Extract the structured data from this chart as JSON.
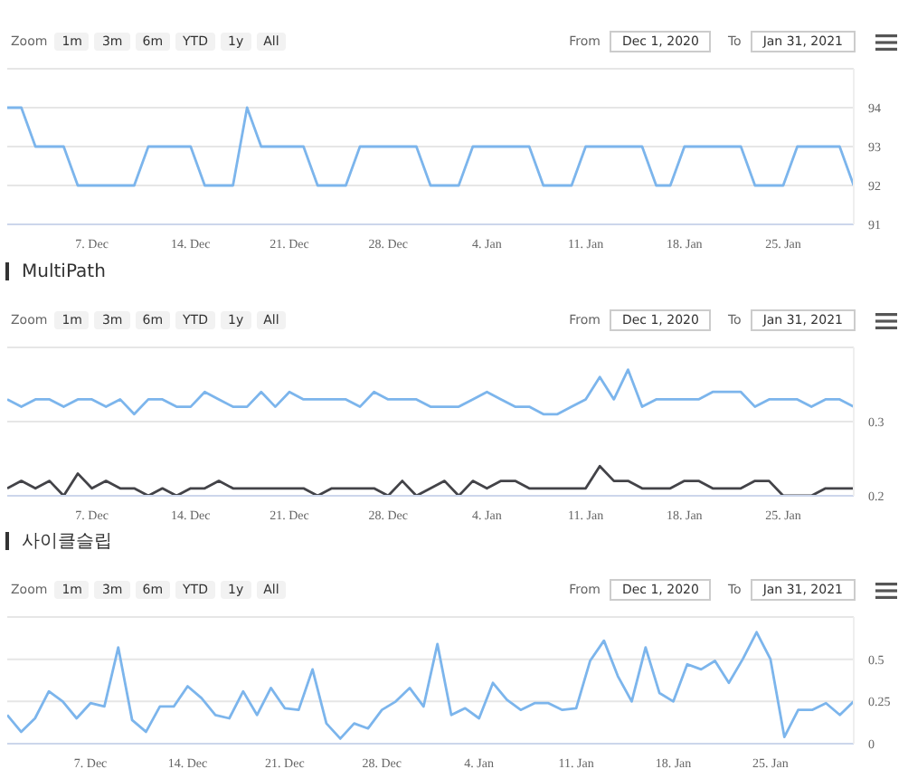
{
  "chart_data": [
    {
      "type": "line",
      "legend": false,
      "grid": "y",
      "marker": "none",
      "annotations": [
        "Zoom",
        "1m",
        "3m",
        "6m",
        "YTD",
        "1y",
        "All",
        "From",
        "Dec 1, 2020",
        "To",
        "Jan 31, 2021"
      ],
      "x": [
        "2020-12-01",
        "2020-12-02",
        "2020-12-03",
        "2020-12-04",
        "2020-12-05",
        "2020-12-06",
        "2020-12-07",
        "2020-12-08",
        "2020-12-09",
        "2020-12-10",
        "2020-12-11",
        "2020-12-12",
        "2020-12-13",
        "2020-12-14",
        "2020-12-15",
        "2020-12-16",
        "2020-12-17",
        "2020-12-18",
        "2020-12-19",
        "2020-12-20",
        "2020-12-21",
        "2020-12-22",
        "2020-12-23",
        "2020-12-24",
        "2020-12-25",
        "2020-12-26",
        "2020-12-27",
        "2020-12-28",
        "2020-12-29",
        "2020-12-30",
        "2020-12-31",
        "2021-01-01",
        "2021-01-02",
        "2021-01-03",
        "2021-01-04",
        "2021-01-05",
        "2021-01-06",
        "2021-01-07",
        "2021-01-08",
        "2021-01-09",
        "2021-01-10",
        "2021-01-11",
        "2021-01-12",
        "2021-01-13",
        "2021-01-14",
        "2021-01-15",
        "2021-01-16",
        "2021-01-17",
        "2021-01-18",
        "2021-01-19",
        "2021-01-20",
        "2021-01-21",
        "2021-01-22",
        "2021-01-23",
        "2021-01-24",
        "2021-01-25",
        "2021-01-26",
        "2021-01-27",
        "2021-01-28",
        "2021-01-29",
        "2021-01-30"
      ],
      "xlim": [
        "2020-12-01",
        "2021-01-30"
      ],
      "xticks": [
        {
          "value": "2020-12-07",
          "label": "7. Dec"
        },
        {
          "value": "2020-12-14",
          "label": "14. Dec"
        },
        {
          "value": "2020-12-21",
          "label": "21. Dec"
        },
        {
          "value": "2020-12-28",
          "label": "28. Dec"
        },
        {
          "value": "2021-01-04",
          "label": "4. Jan"
        },
        {
          "value": "2021-01-11",
          "label": "11. Jan"
        },
        {
          "value": "2021-01-18",
          "label": "18. Jan"
        },
        {
          "value": "2021-01-25",
          "label": "25. Jan"
        }
      ],
      "ylim": [
        91,
        95
      ],
      "yticks": [
        91,
        92,
        93,
        94,
        {
          "value": 95,
          "label": null
        }
      ],
      "series": [
        {
          "color": "#7cb5ec",
          "values": [
            94,
            94,
            93,
            93,
            93,
            92,
            92,
            92,
            92,
            92,
            93,
            93,
            93,
            93,
            92,
            92,
            92,
            94,
            93,
            93,
            93,
            93,
            92,
            92,
            92,
            93,
            93,
            93,
            93,
            93,
            92,
            92,
            92,
            93,
            93,
            93,
            93,
            93,
            92,
            92,
            92,
            93,
            93,
            93,
            93,
            93,
            92,
            92,
            93,
            93,
            93,
            93,
            93,
            92,
            92,
            92,
            93,
            93,
            93,
            93,
            92
          ]
        }
      ]
    },
    {
      "type": "line",
      "title": "MultiPath",
      "legend": false,
      "grid": "y",
      "marker": "none",
      "annotations": [
        "Zoom",
        "1m",
        "3m",
        "6m",
        "YTD",
        "1y",
        "All",
        "From",
        "Dec 1, 2020",
        "To",
        "Jan 31, 2021"
      ],
      "x": [
        "2020-12-01",
        "2020-12-02",
        "2020-12-03",
        "2020-12-04",
        "2020-12-05",
        "2020-12-06",
        "2020-12-07",
        "2020-12-08",
        "2020-12-09",
        "2020-12-10",
        "2020-12-11",
        "2020-12-12",
        "2020-12-13",
        "2020-12-14",
        "2020-12-15",
        "2020-12-16",
        "2020-12-17",
        "2020-12-18",
        "2020-12-19",
        "2020-12-20",
        "2020-12-21",
        "2020-12-22",
        "2020-12-23",
        "2020-12-24",
        "2020-12-25",
        "2020-12-26",
        "2020-12-27",
        "2020-12-28",
        "2020-12-29",
        "2020-12-30",
        "2020-12-31",
        "2021-01-01",
        "2021-01-02",
        "2021-01-03",
        "2021-01-04",
        "2021-01-05",
        "2021-01-06",
        "2021-01-07",
        "2021-01-08",
        "2021-01-09",
        "2021-01-10",
        "2021-01-11",
        "2021-01-12",
        "2021-01-13",
        "2021-01-14",
        "2021-01-15",
        "2021-01-16",
        "2021-01-17",
        "2021-01-18",
        "2021-01-19",
        "2021-01-20",
        "2021-01-21",
        "2021-01-22",
        "2021-01-23",
        "2021-01-24",
        "2021-01-25",
        "2021-01-26",
        "2021-01-27",
        "2021-01-28",
        "2021-01-29",
        "2021-01-30"
      ],
      "xlim": [
        "2020-12-01",
        "2021-01-30"
      ],
      "xticks": [
        {
          "value": "2020-12-07",
          "label": "7. Dec"
        },
        {
          "value": "2020-12-14",
          "label": "14. Dec"
        },
        {
          "value": "2020-12-21",
          "label": "21. Dec"
        },
        {
          "value": "2020-12-28",
          "label": "28. Dec"
        },
        {
          "value": "2021-01-04",
          "label": "4. Jan"
        },
        {
          "value": "2021-01-11",
          "label": "11. Jan"
        },
        {
          "value": "2021-01-18",
          "label": "18. Jan"
        },
        {
          "value": "2021-01-25",
          "label": "25. Jan"
        }
      ],
      "ylim": [
        0.2,
        0.4
      ],
      "yticks": [
        0.2,
        0.3,
        {
          "value": 0.4,
          "label": null
        }
      ],
      "series": [
        {
          "color": "#7cb5ec",
          "values": [
            0.33,
            0.32,
            0.33,
            0.33,
            0.32,
            0.33,
            0.33,
            0.32,
            0.33,
            0.31,
            0.33,
            0.33,
            0.32,
            0.32,
            0.34,
            0.33,
            0.32,
            0.32,
            0.34,
            0.32,
            0.34,
            0.33,
            0.33,
            0.33,
            0.33,
            0.32,
            0.34,
            0.33,
            0.33,
            0.33,
            0.32,
            0.32,
            0.32,
            0.33,
            0.34,
            0.33,
            0.32,
            0.32,
            0.31,
            0.31,
            0.32,
            0.33,
            0.36,
            0.33,
            0.37,
            0.32,
            0.33,
            0.33,
            0.33,
            0.33,
            0.34,
            0.34,
            0.34,
            0.32,
            0.33,
            0.33,
            0.33,
            0.32,
            0.33,
            0.33,
            0.32
          ]
        },
        {
          "color": "#434348",
          "values": [
            0.21,
            0.22,
            0.21,
            0.22,
            0.2,
            0.23,
            0.21,
            0.22,
            0.21,
            0.21,
            0.2,
            0.21,
            0.2,
            0.21,
            0.21,
            0.22,
            0.21,
            0.21,
            0.21,
            0.21,
            0.21,
            0.21,
            0.2,
            0.21,
            0.21,
            0.21,
            0.21,
            0.2,
            0.22,
            0.2,
            0.21,
            0.22,
            0.2,
            0.22,
            0.21,
            0.22,
            0.22,
            0.21,
            0.21,
            0.21,
            0.21,
            0.21,
            0.24,
            0.22,
            0.22,
            0.21,
            0.21,
            0.21,
            0.22,
            0.22,
            0.21,
            0.21,
            0.21,
            0.22,
            0.22,
            0.2,
            0.2,
            0.2,
            0.21,
            0.21,
            0.21
          ]
        }
      ]
    },
    {
      "type": "line",
      "title": "사이클슬립",
      "legend": false,
      "grid": "y",
      "marker": "none",
      "annotations": [
        "Zoom",
        "1m",
        "3m",
        "6m",
        "YTD",
        "1y",
        "All",
        "From",
        "Dec 1, 2020",
        "To",
        "Jan 31, 2021"
      ],
      "x": [
        "2020-12-01",
        "2020-12-02",
        "2020-12-03",
        "2020-12-04",
        "2020-12-05",
        "2020-12-06",
        "2020-12-07",
        "2020-12-08",
        "2020-12-09",
        "2020-12-10",
        "2020-12-11",
        "2020-12-12",
        "2020-12-13",
        "2020-12-14",
        "2020-12-15",
        "2020-12-16",
        "2020-12-17",
        "2020-12-18",
        "2020-12-19",
        "2020-12-20",
        "2020-12-21",
        "2020-12-22",
        "2020-12-23",
        "2020-12-24",
        "2020-12-25",
        "2020-12-26",
        "2020-12-27",
        "2020-12-28",
        "2020-12-29",
        "2020-12-30",
        "2020-12-31",
        "2021-01-01",
        "2021-01-02",
        "2021-01-03",
        "2021-01-04",
        "2021-01-05",
        "2021-01-06",
        "2021-01-07",
        "2021-01-08",
        "2021-01-09",
        "2021-01-10",
        "2021-01-11",
        "2021-01-12",
        "2021-01-13",
        "2021-01-14",
        "2021-01-15",
        "2021-01-16",
        "2021-01-17",
        "2021-01-18",
        "2021-01-19",
        "2021-01-20",
        "2021-01-21",
        "2021-01-22",
        "2021-01-23",
        "2021-01-24",
        "2021-01-25",
        "2021-01-26",
        "2021-01-27",
        "2021-01-28",
        "2021-01-29",
        "2021-01-30",
        "2021-01-31"
      ],
      "xlim": [
        "2020-12-01",
        "2021-01-31"
      ],
      "xticks": [
        {
          "value": "2020-12-07",
          "label": "7. Dec"
        },
        {
          "value": "2020-12-14",
          "label": "14. Dec"
        },
        {
          "value": "2020-12-21",
          "label": "21. Dec"
        },
        {
          "value": "2020-12-28",
          "label": "28. Dec"
        },
        {
          "value": "2021-01-04",
          "label": "4. Jan"
        },
        {
          "value": "2021-01-11",
          "label": "11. Jan"
        },
        {
          "value": "2021-01-18",
          "label": "18. Jan"
        },
        {
          "value": "2021-01-25",
          "label": "25. Jan"
        }
      ],
      "ylim": [
        0,
        0.75
      ],
      "yticks": [
        0,
        0.25,
        0.5,
        {
          "value": 0.75,
          "label": null
        }
      ],
      "series": [
        {
          "color": "#7cb5ec",
          "values": [
            0.17,
            0.07,
            0.15,
            0.31,
            0.25,
            0.15,
            0.24,
            0.22,
            0.57,
            0.14,
            0.07,
            0.22,
            0.22,
            0.34,
            0.27,
            0.17,
            0.15,
            0.31,
            0.17,
            0.33,
            0.21,
            0.2,
            0.44,
            0.12,
            0.03,
            0.12,
            0.09,
            0.2,
            0.25,
            0.33,
            0.22,
            0.59,
            0.17,
            0.21,
            0.15,
            0.36,
            0.26,
            0.2,
            0.24,
            0.24,
            0.2,
            0.21,
            0.49,
            0.61,
            0.4,
            0.25,
            0.57,
            0.3,
            0.25,
            0.47,
            0.44,
            0.49,
            0.36,
            0.5,
            0.66,
            0.5,
            0.04,
            0.2,
            0.2,
            0.24,
            0.17,
            0.25
          ]
        }
      ]
    }
  ]
}
